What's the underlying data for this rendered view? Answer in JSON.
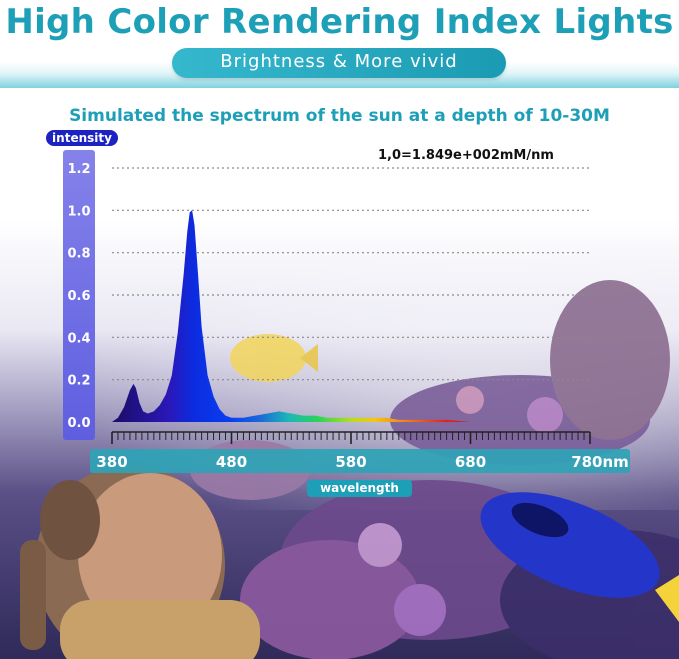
{
  "header": {
    "title": "High Color Rendering Index Lights",
    "banner": "Brightness & More vivid",
    "subtitle": "Simulated the spectrum of the sun at a depth of 10-30M"
  },
  "colors": {
    "accent": "#1d9fb8",
    "axis_badge": "#1d23c2",
    "y_bar": "#6f6fe6"
  },
  "chart_data": {
    "type": "area",
    "title": "Simulated the spectrum of the sun at a depth of 10-30M",
    "xlabel": "wavelength",
    "ylabel": "intensity",
    "note": "1,0=1.849e+002mM/nm",
    "x_unit_label": "780nm",
    "xlim": [
      380,
      780
    ],
    "ylim": [
      0,
      1.2
    ],
    "yticks": [
      "1.2",
      "1.0",
      "0.8",
      "0.6",
      "0.4",
      "0.2",
      "0.0"
    ],
    "xticks": [
      "380",
      "480",
      "580",
      "680",
      "780nm"
    ],
    "grid": true,
    "series": [
      {
        "x": [
          380,
          385,
          390,
          395,
          398,
          400,
          403,
          406,
          410,
          415,
          420,
          425,
          430,
          435,
          440,
          443,
          445,
          447,
          449,
          452,
          455,
          460,
          465,
          470,
          475,
          480,
          490,
          500,
          510,
          520,
          530,
          540,
          550,
          560,
          570,
          580,
          590,
          600,
          610,
          620,
          640,
          660,
          680,
          700
        ],
        "y": [
          0.0,
          0.02,
          0.07,
          0.15,
          0.18,
          0.16,
          0.09,
          0.05,
          0.04,
          0.05,
          0.08,
          0.13,
          0.22,
          0.42,
          0.7,
          0.9,
          0.99,
          1.0,
          0.93,
          0.7,
          0.45,
          0.22,
          0.12,
          0.06,
          0.03,
          0.02,
          0.02,
          0.03,
          0.04,
          0.05,
          0.04,
          0.03,
          0.03,
          0.02,
          0.02,
          0.02,
          0.02,
          0.02,
          0.02,
          0.01,
          0.01,
          0.01,
          0.0,
          0.0
        ]
      }
    ]
  }
}
